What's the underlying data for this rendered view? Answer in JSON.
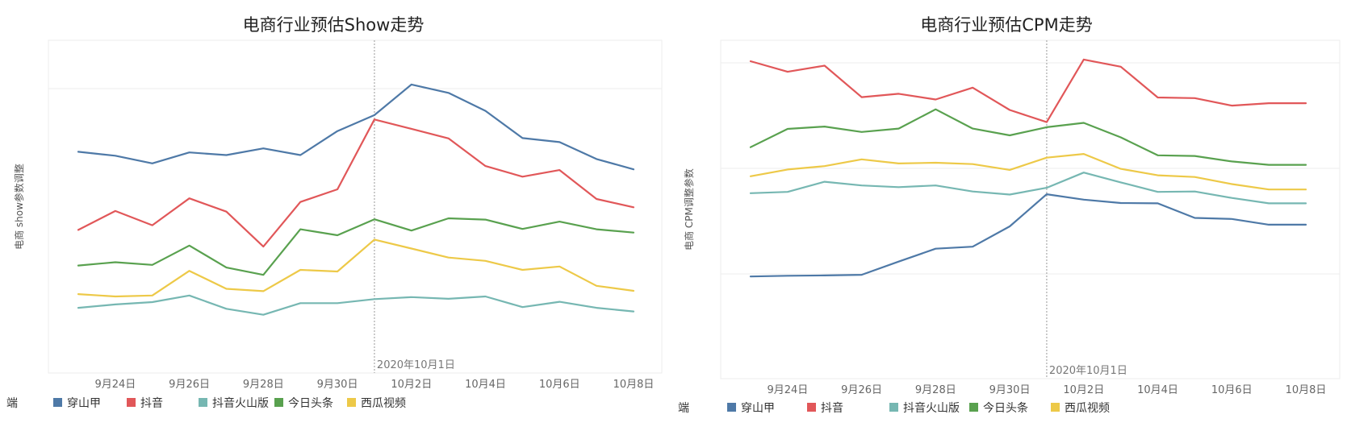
{
  "chart_data": [
    {
      "type": "line",
      "title": "电商行业预估Show走势",
      "ylabel": "电商 show参数调整",
      "xlabel": "",
      "x_ticks": [
        "9月24日",
        "9月26日",
        "9月28日",
        "9月30日",
        "10月2日",
        "10月4日",
        "10月6日",
        "10月8日"
      ],
      "x": [
        "9月23日",
        "9月24日",
        "9月25日",
        "9月26日",
        "9月27日",
        "9月28日",
        "9月29日",
        "9月30日",
        "10月1日",
        "10月2日",
        "10月3日",
        "10月4日",
        "10月5日",
        "10月6日",
        "10月7日",
        "10月8日"
      ],
      "annotation": "2020年10月1日",
      "ylim": [
        0,
        100
      ],
      "grid": "horizontal",
      "series": [
        {
          "name": "穿山甲",
          "color": "#4e79a7",
          "values": [
            66.5,
            65.3,
            63,
            66.3,
            65.5,
            67.5,
            65.5,
            72.7,
            77.5,
            86.7,
            84.2,
            78.8,
            70.6,
            69.4,
            64.3,
            61.2
          ]
        },
        {
          "name": "抖音",
          "color": "#e15759",
          "values": [
            43,
            48.7,
            44.4,
            52.5,
            48.5,
            38,
            51.4,
            55.2,
            76.2,
            73.4,
            70.5,
            62.2,
            59,
            61,
            52.3,
            49.8
          ]
        },
        {
          "name": "抖音火山版",
          "color": "#76b7b2",
          "values": [
            19.6,
            20.6,
            21.3,
            23.3,
            19.3,
            17.5,
            21,
            21,
            22.2,
            22.8,
            22.3,
            23,
            19.8,
            21.4,
            19.6,
            18.5
          ]
        },
        {
          "name": "今日头条",
          "color": "#59a14f",
          "values": [
            32.3,
            33.3,
            32.5,
            38.3,
            31.7,
            29.5,
            43.2,
            41.4,
            46.2,
            42.8,
            46.5,
            46.1,
            43.3,
            45.5,
            43.2,
            42.2
          ]
        },
        {
          "name": "西瓜视频",
          "color": "#edc948",
          "values": [
            23.7,
            23,
            23.3,
            30.7,
            25.3,
            24.6,
            31,
            30.5,
            40.1,
            37.4,
            34.7,
            33.7,
            31,
            32,
            26.2,
            24.7
          ]
        }
      ]
    },
    {
      "type": "line",
      "title": "电商行业预估CPM走势",
      "ylabel": "电商 CPM调整参数",
      "xlabel": "",
      "x_ticks": [
        "9月24日",
        "9月26日",
        "9月28日",
        "9月30日",
        "10月2日",
        "10月4日",
        "10月6日",
        "10月8日"
      ],
      "x": [
        "9月23日",
        "9月24日",
        "9月25日",
        "9月26日",
        "9月27日",
        "9月28日",
        "9月29日",
        "9月30日",
        "10月1日",
        "10月2日",
        "10月3日",
        "10月4日",
        "10月5日",
        "10月6日",
        "10月7日",
        "10月8日"
      ],
      "annotation": "2020年10月1日",
      "ylim": [
        0,
        100
      ],
      "grid": "horizontal",
      "series": [
        {
          "name": "穿山甲",
          "color": "#4e79a7",
          "values": [
            30.2,
            30.4,
            30.5,
            30.7,
            34.6,
            38.4,
            39,
            45,
            54.5,
            52.9,
            51.9,
            51.8,
            47.5,
            47.2,
            45.5,
            45.5
          ]
        },
        {
          "name": "抖音",
          "color": "#e15759",
          "values": [
            93.8,
            90.7,
            92.5,
            83.2,
            84.2,
            82.5,
            86,
            79.4,
            75.8,
            94.3,
            92.2,
            83.1,
            82.9,
            80.7,
            81.4,
            81.4
          ]
        },
        {
          "name": "抖音火山版",
          "color": "#76b7b2",
          "values": [
            54.8,
            55.2,
            58.2,
            57.1,
            56.6,
            57.1,
            55.3,
            54.4,
            56.4,
            60.9,
            58,
            55.2,
            55.3,
            53.4,
            51.8,
            51.8
          ]
        },
        {
          "name": "今日头条",
          "color": "#59a14f",
          "values": [
            68.4,
            73.8,
            74.5,
            72.9,
            73.9,
            79.6,
            73.9,
            71.9,
            74.3,
            75.6,
            71.3,
            66,
            65.8,
            64.2,
            63.2,
            63.2
          ]
        },
        {
          "name": "西瓜视频",
          "color": "#edc948",
          "values": [
            59.8,
            61.8,
            62.8,
            64.8,
            63.6,
            63.8,
            63.4,
            61.7,
            65.3,
            66.4,
            62,
            60.1,
            59.6,
            57.5,
            55.9,
            55.9
          ]
        }
      ]
    }
  ],
  "legend_title": "端"
}
